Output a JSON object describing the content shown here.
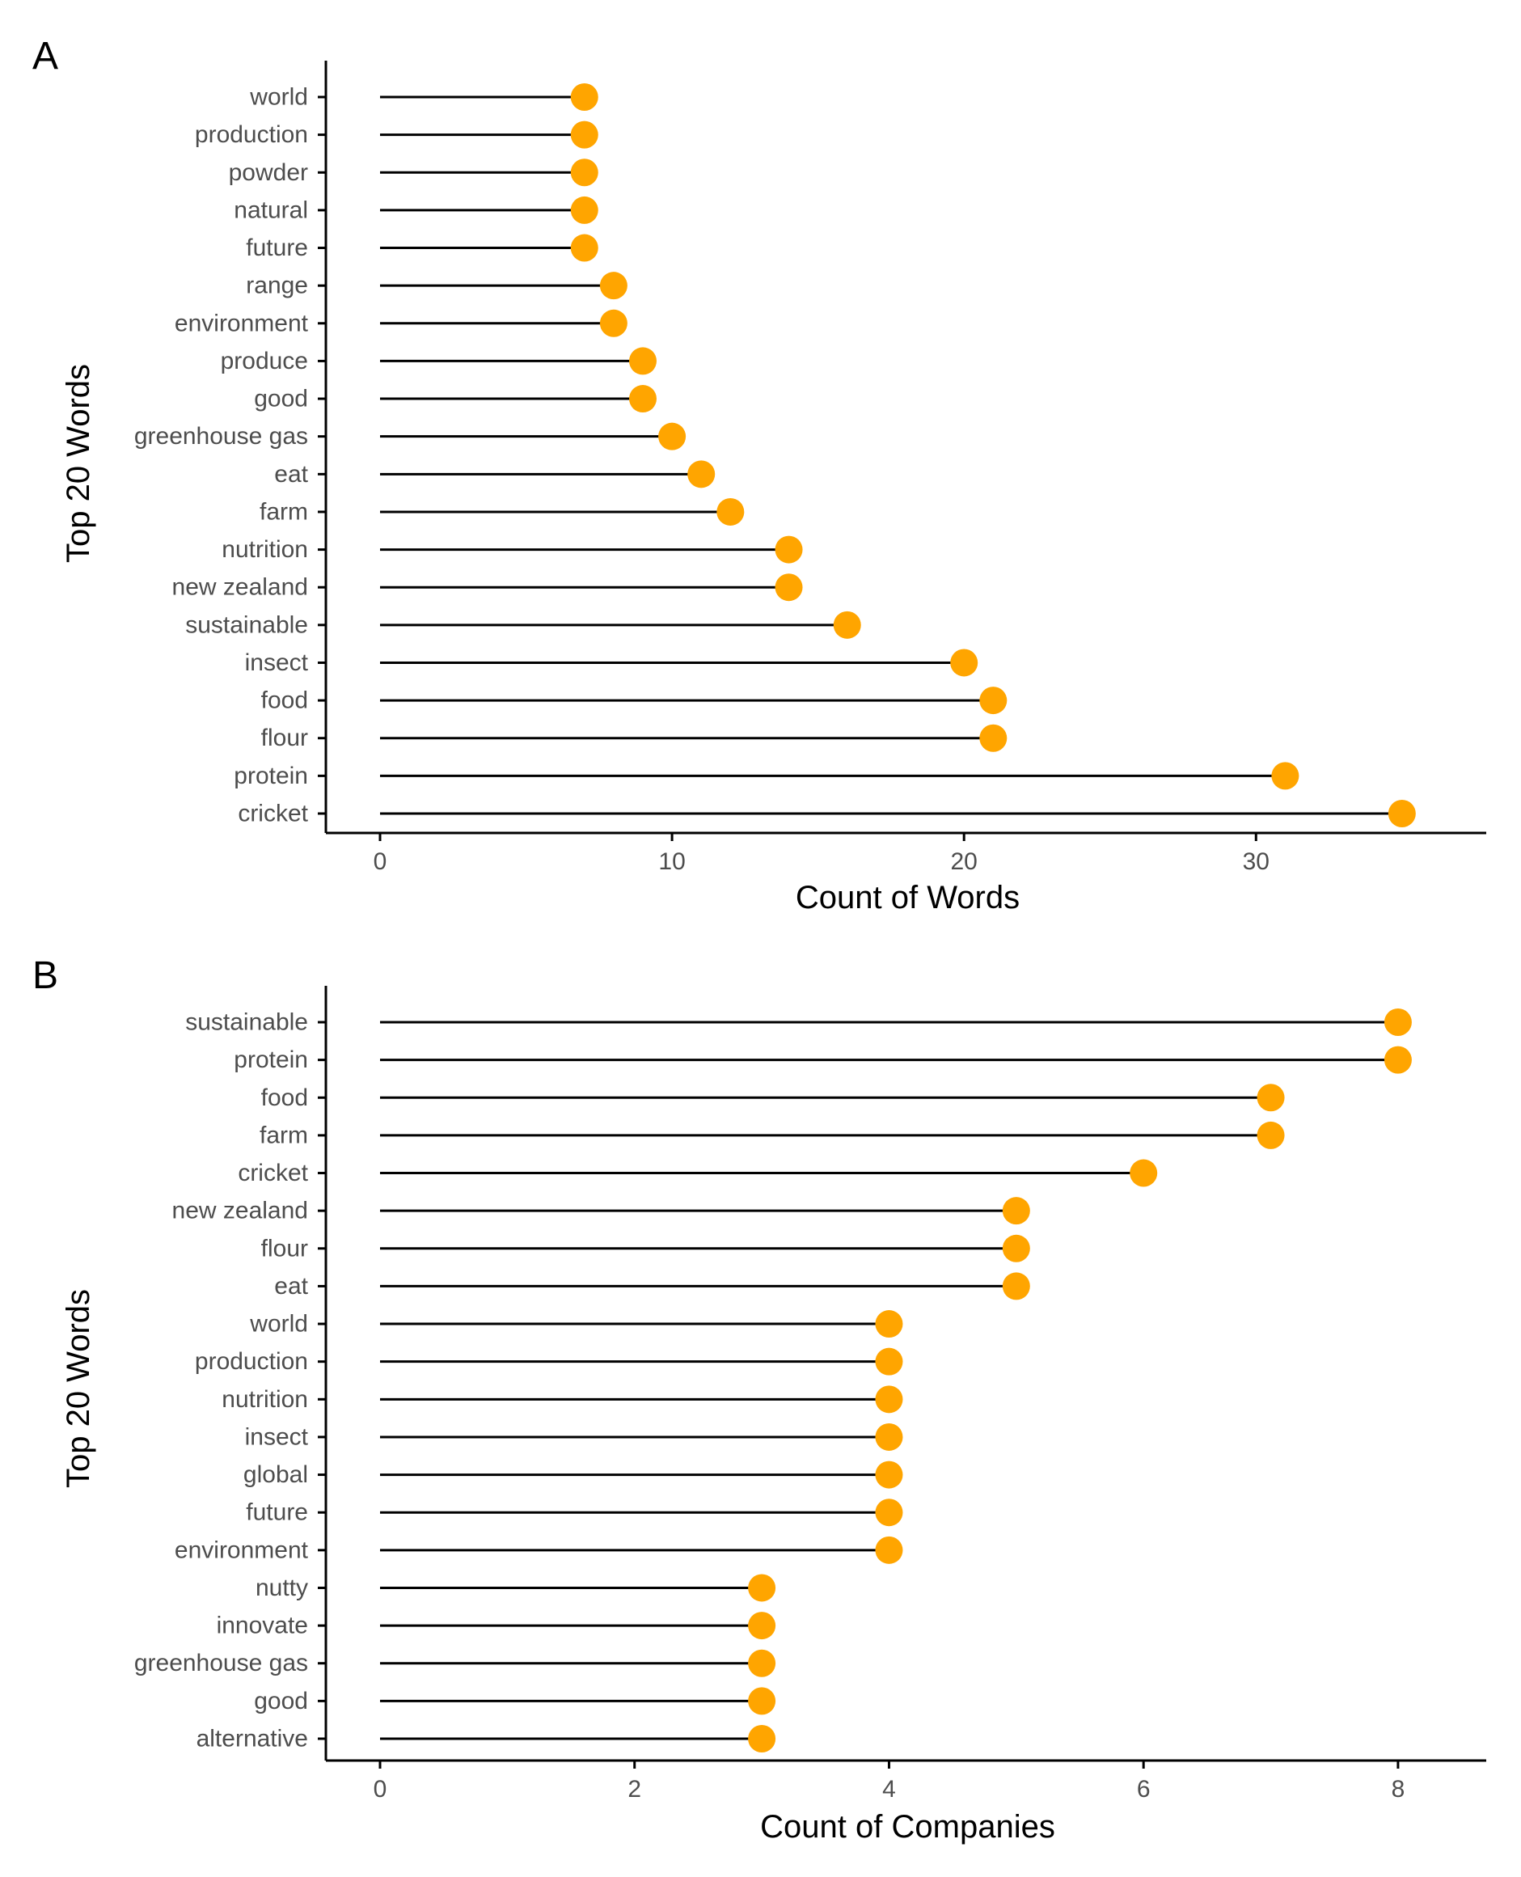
{
  "colors": {
    "point": "#FFA500",
    "segment": "#000000",
    "axis": "#000000",
    "tick_text": "#4D4D4D",
    "background": "#FFFFFF"
  },
  "chart_data": [
    {
      "type": "lollipop",
      "panel_label": "A",
      "title": "",
      "xlabel": "Count of Words",
      "ylabel": "Top 20 Words",
      "xlim": [
        0,
        36.5
      ],
      "xticks": [
        0,
        10,
        20,
        30
      ],
      "grid": false,
      "legend": "none",
      "categories": [
        "world",
        "production",
        "powder",
        "natural",
        "future",
        "range",
        "environment",
        "produce",
        "good",
        "greenhouse gas",
        "eat",
        "farm",
        "nutrition",
        "new zealand",
        "sustainable",
        "insect",
        "food",
        "flour",
        "protein",
        "cricket"
      ],
      "values": [
        7,
        7,
        7,
        7,
        7,
        8,
        8,
        9,
        9,
        10,
        11,
        12,
        14,
        14,
        16,
        20,
        21,
        21,
        31,
        35
      ]
    },
    {
      "type": "lollipop",
      "panel_label": "B",
      "title": "",
      "xlabel": "Count of Companies",
      "ylabel": "Top 20 Words",
      "xlim": [
        0,
        8.35
      ],
      "xticks": [
        0,
        2,
        4,
        6,
        8
      ],
      "grid": false,
      "legend": "none",
      "categories": [
        "sustainable",
        "protein",
        "food",
        "farm",
        "cricket",
        "new zealand",
        "flour",
        "eat",
        "world",
        "production",
        "nutrition",
        "insect",
        "global",
        "future",
        "environment",
        "nutty",
        "innovate",
        "greenhouse gas",
        "good",
        "alternative"
      ],
      "values": [
        8,
        8,
        7,
        7,
        6,
        5,
        5,
        5,
        4,
        4,
        4,
        4,
        4,
        4,
        4,
        3,
        3,
        3,
        3,
        3
      ]
    }
  ]
}
